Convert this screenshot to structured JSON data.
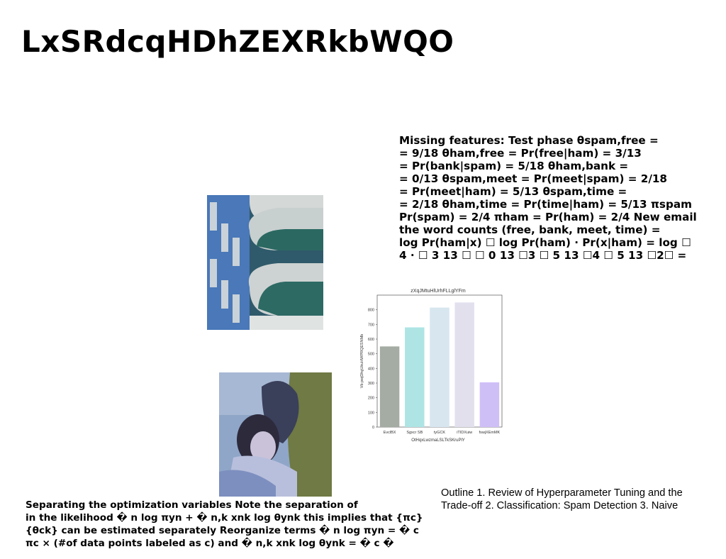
{
  "title": "LxSRdcqHDhZEXRkbWQO",
  "math_lines": [
    "Missing features: Test phase θspam,free =",
    "= 9/18 θham,free = Pr(free|ham) = 3/13",
    "= Pr(bank|spam) = 5/18 θham,bank =",
    "= 0/13 θspam,meet = Pr(meet|spam) = 2/18",
    "= Pr(meet|ham) = 5/13 θspam,time =",
    "= 2/18 θham,time = Pr(time|ham) = 5/13 πspam",
    "Pr(spam) = 2/4 πham = Pr(ham) = 2/4 New email",
    "the word counts (free, bank, meet, time) =",
    "log Pr(ham|x) ☐ log Pr(ham) · Pr(x|ham) = log ☐",
    "4 · ☐ 3 13 ☐ ☐ 0 13 ☐3 ☐ 5 13 ☐4 ☐ 5 13 ☐2☐ ="
  ],
  "bottom_lines": [
    "Separating the optimization variables Note the separation of",
    "in the likelihood � n log πyn + � n,k xnk log θynk this implies that {πc}",
    "{θck} can be estimated separately Reorganize terms � n log πyn = � c",
    "πc × (#of data points labeled as c) and � n,k xnk log θynk = � c �"
  ],
  "outline_lines": [
    "Outline 1. Review of Hyperparameter Tuning and the",
    "Trade-off 2. Classification: Spam Detection 3. Naive"
  ],
  "images": {
    "building": "building-balconies-photo",
    "people": "people-in-water-photo"
  },
  "chart_data": {
    "type": "bar",
    "title": "zXqJMtuHlUrhFLLglYFm",
    "xlabel": "OtHqxLwzmaLSLTkSKruPlY",
    "ylabel": "Vb pwjDhgUkuHWPRQESNMb",
    "categories": [
      "EvclBX",
      "Sgxcr SB",
      "tyGCK",
      "iTIDXuiw",
      "fswjXEmMK"
    ],
    "values": [
      550,
      680,
      815,
      850,
      305
    ],
    "colors": [
      "#a5aca4",
      "#aee4e4",
      "#d7e6ef",
      "#e3e0ee",
      "#cfbff7"
    ],
    "ylim": [
      0,
      900
    ],
    "yticks": [
      0,
      100,
      200,
      300,
      400,
      500,
      600,
      700,
      800
    ],
    "grid": false
  }
}
